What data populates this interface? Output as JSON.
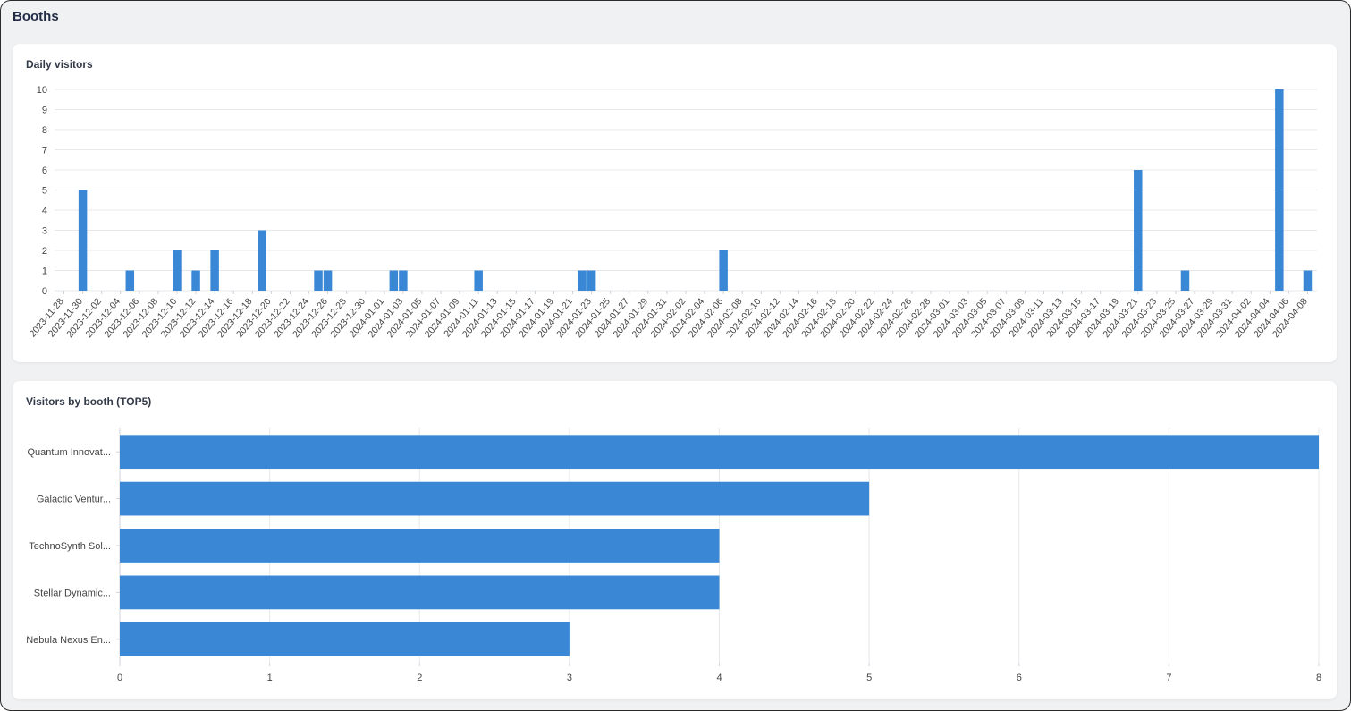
{
  "page": {
    "title": "Booths"
  },
  "daily_card": {
    "title": "Daily visitors"
  },
  "booth_card": {
    "title": "Visitors by booth (TOP5)"
  },
  "colors": {
    "bar": "#3a87d6",
    "grid": "#e6e8ec",
    "axis_text": "#444444",
    "background": "#f0f1f3"
  },
  "chart_data": [
    {
      "type": "bar",
      "title": "Daily visitors",
      "xlabel": "",
      "ylabel": "",
      "ylim": [
        0,
        10
      ],
      "grid": true,
      "x_tick_labels": [
        "2023-11-28",
        "2023-11-30",
        "2023-12-02",
        "2023-12-04",
        "2023-12-06",
        "2023-12-08",
        "2023-12-10",
        "2023-12-12",
        "2023-12-14",
        "2023-12-16",
        "2023-12-18",
        "2023-12-20",
        "2023-12-22",
        "2023-12-24",
        "2023-12-26",
        "2023-12-28",
        "2023-12-30",
        "2024-01-01",
        "2024-01-03",
        "2024-01-05",
        "2024-01-07",
        "2024-01-09",
        "2024-01-11",
        "2024-01-13",
        "2024-01-15",
        "2024-01-17",
        "2024-01-19",
        "2024-01-21",
        "2024-01-23",
        "2024-01-25",
        "2024-01-27",
        "2024-01-29",
        "2024-01-31",
        "2024-02-02",
        "2024-02-04",
        "2024-02-06",
        "2024-02-08",
        "2024-02-10",
        "2024-02-12",
        "2024-02-14",
        "2024-02-16",
        "2024-02-18",
        "2024-02-20",
        "2024-02-22",
        "2024-02-24",
        "2024-02-26",
        "2024-02-28",
        "2024-03-01",
        "2024-03-03",
        "2024-03-05",
        "2024-03-07",
        "2024-03-09",
        "2024-03-11",
        "2024-03-13",
        "2024-03-15",
        "2024-03-17",
        "2024-03-19",
        "2024-03-21",
        "2024-03-23",
        "2024-03-25",
        "2024-03-27",
        "2024-03-29",
        "2024-03-31",
        "2024-04-02",
        "2024-04-04",
        "2024-04-06",
        "2024-04-08"
      ],
      "y_ticks": [
        0,
        1,
        2,
        3,
        4,
        5,
        6,
        7,
        8,
        9,
        10
      ],
      "points": [
        {
          "x": "2023-12-01",
          "y": 5
        },
        {
          "x": "2023-12-06",
          "y": 1
        },
        {
          "x": "2023-12-11",
          "y": 2
        },
        {
          "x": "2023-12-13",
          "y": 1
        },
        {
          "x": "2023-12-15",
          "y": 2
        },
        {
          "x": "2023-12-20",
          "y": 3
        },
        {
          "x": "2023-12-26",
          "y": 1
        },
        {
          "x": "2023-12-27",
          "y": 1
        },
        {
          "x": "2024-01-03",
          "y": 1
        },
        {
          "x": "2024-01-04",
          "y": 1
        },
        {
          "x": "2024-01-12",
          "y": 1
        },
        {
          "x": "2024-01-23",
          "y": 1
        },
        {
          "x": "2024-01-24",
          "y": 1
        },
        {
          "x": "2024-02-07",
          "y": 2
        },
        {
          "x": "2024-03-22",
          "y": 6
        },
        {
          "x": "2024-03-27",
          "y": 1
        },
        {
          "x": "2024-04-06",
          "y": 10
        },
        {
          "x": "2024-04-09",
          "y": 1
        }
      ]
    },
    {
      "type": "bar",
      "orientation": "horizontal",
      "title": "Visitors by booth (TOP5)",
      "xlabel": "",
      "ylabel": "",
      "xlim": [
        0,
        8
      ],
      "grid": true,
      "x_ticks": [
        0,
        1,
        2,
        3,
        4,
        5,
        6,
        7,
        8
      ],
      "categories": [
        "Quantum Innovat...",
        "Galactic Ventur...",
        "TechnoSynth Sol...",
        "Stellar Dynamic...",
        "Nebula Nexus En..."
      ],
      "values": [
        8,
        5,
        4,
        4,
        3
      ]
    }
  ]
}
